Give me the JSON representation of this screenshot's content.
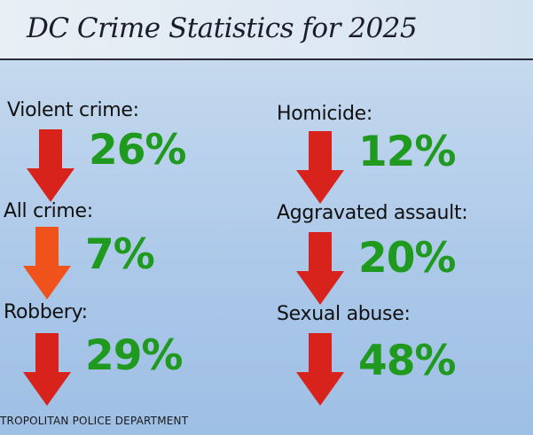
{
  "title": "DC Crime Statistics for 2025",
  "colors": {
    "arrow_red": "#d7231b",
    "arrow_orange": "#f0521c",
    "value_green": "#1f9a1f"
  },
  "stats": [
    {
      "label": "Violent crime:",
      "value": "26%",
      "direction": "down",
      "icon": "down-arrow-icon"
    },
    {
      "label": "Homicide:",
      "value": "12%",
      "direction": "down",
      "icon": "down-arrow-icon"
    },
    {
      "label": "All crime:",
      "value": "7%",
      "direction": "down",
      "icon": "down-arrow-icon"
    },
    {
      "label": "Aggravated assault:",
      "value": "20%",
      "direction": "down",
      "icon": "down-arrow-icon"
    },
    {
      "label": "Robbery:",
      "value": "29%",
      "direction": "down",
      "icon": "down-arrow-icon"
    },
    {
      "label": "Sexual abuse:",
      "value": "48%",
      "direction": "down",
      "icon": "down-arrow-icon"
    }
  ],
  "footer": "TROPOLITAN POLICE DEPARTMENT"
}
